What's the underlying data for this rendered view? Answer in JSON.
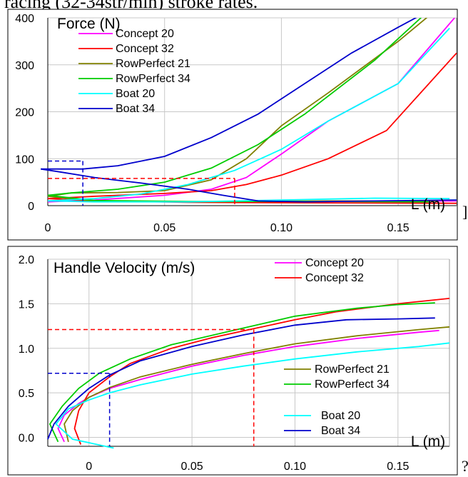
{
  "page": {
    "top_text": "racing (32-34str/min) stroke rates."
  },
  "chart_data": [
    {
      "type": "line",
      "title": "Force (N)",
      "xlabel": "L (m)",
      "ylabel": "",
      "xlim": [
        0,
        0.175
      ],
      "ylim": [
        0,
        400
      ],
      "x_ticks": [
        "0",
        "0.05",
        "0.10",
        "0.15"
      ],
      "x_tick_values": [
        0,
        0.05,
        0.1,
        0.15
      ],
      "y_ticks": [
        "0",
        "100",
        "200",
        "300",
        "400"
      ],
      "y_tick_values": [
        0,
        100,
        200,
        300,
        400
      ],
      "grid": true,
      "legend_position": "top-left",
      "series": [
        {
          "name": "Concept 20",
          "color": "#ff00ff",
          "points": [
            [
              0,
              8
            ],
            [
              0.02,
              12
            ],
            [
              0.05,
              22
            ],
            [
              0.07,
              35
            ],
            [
              0.085,
              60
            ],
            [
              0.1,
              110
            ],
            [
              0.12,
              180
            ],
            [
              0.15,
              260
            ],
            [
              0.175,
              405
            ]
          ],
          "return_points": [
            [
              0.175,
              10
            ],
            [
              0.12,
              9
            ],
            [
              0.06,
              8
            ],
            [
              0.02,
              9
            ],
            [
              0,
              10
            ]
          ]
        },
        {
          "name": "Concept 32",
          "color": "#ff0000",
          "points": [
            [
              0,
              15
            ],
            [
              0.02,
              20
            ],
            [
              0.05,
              26
            ],
            [
              0.07,
              32
            ],
            [
              0.085,
              45
            ],
            [
              0.1,
              65
            ],
            [
              0.12,
              100
            ],
            [
              0.145,
              160
            ],
            [
              0.175,
              325
            ]
          ],
          "return_points": [
            [
              0.175,
              5
            ],
            [
              0.12,
              6
            ],
            [
              0.06,
              7
            ],
            [
              0.02,
              10
            ],
            [
              0,
              15
            ]
          ]
        },
        {
          "name": "RowPerfect 21",
          "color": "#808000",
          "points": [
            [
              0,
              20
            ],
            [
              0.01,
              27
            ],
            [
              0.03,
              28
            ],
            [
              0.05,
              32
            ],
            [
              0.07,
              55
            ],
            [
              0.085,
              100
            ],
            [
              0.1,
              170
            ],
            [
              0.12,
              240
            ],
            [
              0.15,
              350
            ],
            [
              0.167,
              420
            ]
          ],
          "return_points": [
            [
              0.167,
              10
            ],
            [
              0.12,
              10
            ],
            [
              0.06,
              8
            ],
            [
              0.02,
              9
            ],
            [
              0,
              20
            ]
          ]
        },
        {
          "name": "RowPerfect 34",
          "color": "#00cc00",
          "points": [
            [
              0,
              22
            ],
            [
              0.01,
              27
            ],
            [
              0.03,
              35
            ],
            [
              0.05,
              50
            ],
            [
              0.07,
              80
            ],
            [
              0.09,
              130
            ],
            [
              0.11,
              195
            ],
            [
              0.14,
              310
            ],
            [
              0.163,
              415
            ]
          ],
          "return_points": [
            [
              0.163,
              8
            ],
            [
              0.12,
              9
            ],
            [
              0.06,
              9
            ],
            [
              0.02,
              11
            ],
            [
              0,
              22
            ]
          ]
        },
        {
          "name": "Boat 20",
          "color": "#00ffff",
          "points": [
            [
              0,
              10
            ],
            [
              0.02,
              15
            ],
            [
              0.04,
              25
            ],
            [
              0.06,
              45
            ],
            [
              0.08,
              75
            ],
            [
              0.1,
              120
            ],
            [
              0.12,
              180
            ],
            [
              0.15,
              260
            ],
            [
              0.172,
              378
            ]
          ],
          "return_points": [
            [
              0.172,
              15
            ],
            [
              0.14,
              16
            ],
            [
              0.1,
              12
            ],
            [
              0.06,
              8
            ],
            [
              0.02,
              8
            ],
            [
              0,
              10
            ]
          ]
        },
        {
          "name": "Boat 34",
          "color": "#0000cc",
          "points": [
            [
              -0.003,
              78
            ],
            [
              0.015,
              78
            ],
            [
              0.03,
              85
            ],
            [
              0.05,
              105
            ],
            [
              0.07,
              145
            ],
            [
              0.09,
              195
            ],
            [
              0.11,
              260
            ],
            [
              0.13,
              325
            ],
            [
              0.15,
              380
            ],
            [
              0.165,
              420
            ]
          ],
          "return_points": [
            [
              0.175,
              12
            ],
            [
              0.14,
              10
            ],
            [
              0.11,
              8
            ],
            [
              0.09,
              10
            ],
            [
              0.075,
              22
            ],
            [
              0.06,
              35
            ],
            [
              0.04,
              48
            ],
            [
              0.02,
              60
            ],
            [
              0.005,
              72
            ],
            [
              -0.003,
              78
            ]
          ]
        }
      ],
      "markers": [
        {
          "color": "#0000cc",
          "x": 0.015,
          "y": 95
        },
        {
          "color": "#ff0000",
          "x": 0.08,
          "y": 58
        }
      ]
    },
    {
      "type": "line",
      "title": "Handle Velocity (m/s)",
      "xlabel": "L (m)",
      "ylabel": "",
      "xlim": [
        -0.02,
        0.175
      ],
      "ylim": [
        -0.1,
        2.0
      ],
      "x_ticks": [
        "0",
        "0.05",
        "0.10",
        "0.15"
      ],
      "x_tick_values": [
        0,
        0.05,
        0.1,
        0.15
      ],
      "y_ticks": [
        "0.0",
        "0.5",
        "1.0",
        "1.5",
        "2.0"
      ],
      "y_tick_values": [
        0,
        0.5,
        1.0,
        1.5,
        2.0
      ],
      "grid": true,
      "legend_position": "right",
      "series": [
        {
          "name": "Concept 20",
          "color": "#ff00ff",
          "points": [
            [
              -0.012,
              -0.05
            ],
            [
              -0.015,
              0.1
            ],
            [
              -0.012,
              0.25
            ],
            [
              -0.005,
              0.38
            ],
            [
              0,
              0.45
            ],
            [
              0.01,
              0.55
            ],
            [
              0.025,
              0.65
            ],
            [
              0.05,
              0.8
            ],
            [
              0.075,
              0.92
            ],
            [
              0.1,
              1.02
            ],
            [
              0.13,
              1.11
            ],
            [
              0.16,
              1.18
            ],
            [
              0.17,
              1.2
            ]
          ]
        },
        {
          "name": "Concept 32",
          "color": "#ff0000",
          "points": [
            [
              -0.004,
              -0.08
            ],
            [
              -0.007,
              0.1
            ],
            [
              -0.005,
              0.3
            ],
            [
              0,
              0.5
            ],
            [
              0.01,
              0.68
            ],
            [
              0.02,
              0.83
            ],
            [
              0.04,
              1.0
            ],
            [
              0.06,
              1.12
            ],
            [
              0.08,
              1.22
            ],
            [
              0.1,
              1.32
            ],
            [
              0.12,
              1.41
            ],
            [
              0.15,
              1.5
            ],
            [
              0.175,
              1.56
            ]
          ]
        },
        {
          "name": "RowPerfect 21",
          "color": "#808000",
          "points": [
            [
              -0.01,
              -0.05
            ],
            [
              -0.012,
              0.15
            ],
            [
              -0.008,
              0.3
            ],
            [
              0,
              0.45
            ],
            [
              0.01,
              0.56
            ],
            [
              0.025,
              0.68
            ],
            [
              0.05,
              0.82
            ],
            [
              0.075,
              0.94
            ],
            [
              0.1,
              1.05
            ],
            [
              0.13,
              1.14
            ],
            [
              0.16,
              1.21
            ],
            [
              0.175,
              1.24
            ]
          ]
        },
        {
          "name": "RowPerfect 34",
          "color": "#00cc00",
          "points": [
            [
              -0.015,
              -0.05
            ],
            [
              -0.019,
              0.15
            ],
            [
              -0.013,
              0.35
            ],
            [
              -0.005,
              0.55
            ],
            [
              0.005,
              0.72
            ],
            [
              0.02,
              0.88
            ],
            [
              0.04,
              1.04
            ],
            [
              0.07,
              1.2
            ],
            [
              0.1,
              1.36
            ],
            [
              0.13,
              1.45
            ],
            [
              0.15,
              1.49
            ],
            [
              0.168,
              1.51
            ]
          ]
        },
        {
          "name": "Boat 20",
          "color": "#00ffff",
          "points": [
            [
              0.012,
              -0.12
            ],
            [
              -0.008,
              -0.02
            ],
            [
              -0.016,
              0.15
            ],
            [
              -0.01,
              0.32
            ],
            [
              0,
              0.42
            ],
            [
              0.01,
              0.5
            ],
            [
              0.025,
              0.59
            ],
            [
              0.05,
              0.71
            ],
            [
              0.075,
              0.8
            ],
            [
              0.1,
              0.88
            ],
            [
              0.13,
              0.96
            ],
            [
              0.16,
              1.02
            ],
            [
              0.175,
              1.06
            ]
          ]
        },
        {
          "name": "Boat 34",
          "color": "#0000cc",
          "points": [
            [
              -0.02,
              -0.02
            ],
            [
              -0.017,
              0.15
            ],
            [
              -0.01,
              0.35
            ],
            [
              0,
              0.55
            ],
            [
              0.01,
              0.7
            ],
            [
              0.025,
              0.86
            ],
            [
              0.05,
              1.02
            ],
            [
              0.075,
              1.15
            ],
            [
              0.1,
              1.26
            ],
            [
              0.125,
              1.32
            ],
            [
              0.15,
              1.33
            ],
            [
              0.168,
              1.34
            ]
          ]
        }
      ],
      "markers": [
        {
          "color": "#0000cc",
          "x": 0.01,
          "y": 0.72
        },
        {
          "color": "#ff0000",
          "x": 0.08,
          "y": 1.21
        }
      ]
    }
  ]
}
